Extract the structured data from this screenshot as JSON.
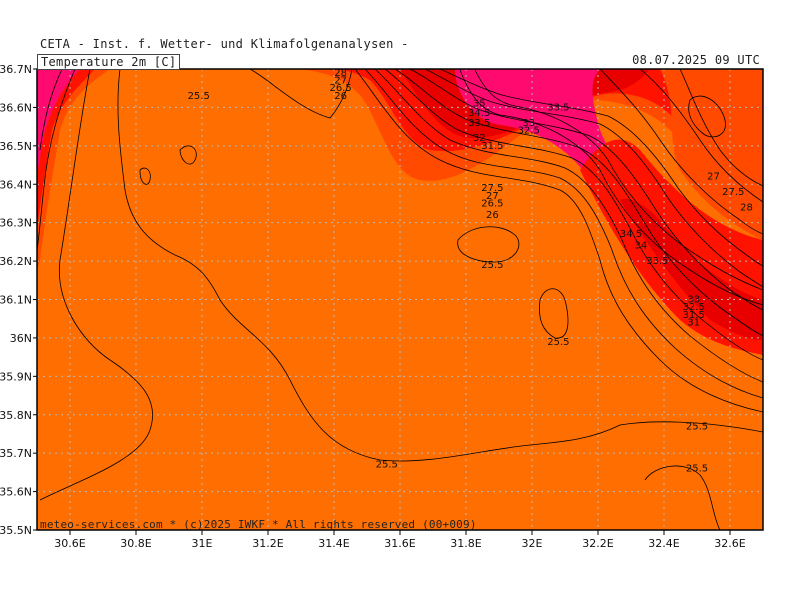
{
  "header": {
    "model_title": "CETA - Inst. f. Wetter- und Klimafolgenanalysen -",
    "valid_time": "08.07.2025 09 UTC",
    "variable": "Temperature 2m [C]"
  },
  "footer": {
    "credit": "meteo-services.com * (c)2025 IWKF * All rights reserved (00+009)"
  },
  "colors": {
    "base_orange": "#ff6e00",
    "orange_red": "#ff4a00",
    "red": "#ff1200",
    "deep_red": "#e80000",
    "magenta": "#ff0a6e",
    "grid": "#bbbbbb",
    "contour": "#000000"
  },
  "axes": {
    "lon_ticks": [
      "30.6E",
      "30.8E",
      "31E",
      "31.2E",
      "31.4E",
      "31.6E",
      "31.8E",
      "32E",
      "32.2E",
      "32.4E",
      "32.6E"
    ],
    "lat_ticks": [
      "36.7N",
      "36.6N",
      "36.5N",
      "36.4N",
      "36.3N",
      "36.2N",
      "36.1N",
      "36N",
      "35.9N",
      "35.8N",
      "35.7N",
      "35.6N",
      "35.5N"
    ]
  },
  "contour_labels": [
    {
      "text": "25.5",
      "lon": 30.99,
      "lat": 36.63
    },
    {
      "text": "28",
      "lon": 31.42,
      "lat": 36.69
    },
    {
      "text": "27",
      "lon": 31.42,
      "lat": 36.67
    },
    {
      "text": "26.5",
      "lon": 31.42,
      "lat": 36.65
    },
    {
      "text": "26",
      "lon": 31.42,
      "lat": 36.63
    },
    {
      "text": "35",
      "lon": 31.84,
      "lat": 36.61
    },
    {
      "text": "34.5",
      "lon": 31.84,
      "lat": 36.585
    },
    {
      "text": "33.5",
      "lon": 31.84,
      "lat": 36.56
    },
    {
      "text": "33",
      "lon": 31.99,
      "lat": 36.56
    },
    {
      "text": "32.5",
      "lon": 31.99,
      "lat": 36.54
    },
    {
      "text": "33.5",
      "lon": 32.08,
      "lat": 36.6
    },
    {
      "text": "32",
      "lon": 31.84,
      "lat": 36.52
    },
    {
      "text": "31.5",
      "lon": 31.88,
      "lat": 36.5
    },
    {
      "text": "27.5",
      "lon": 31.88,
      "lat": 36.39
    },
    {
      "text": "27",
      "lon": 31.88,
      "lat": 36.37
    },
    {
      "text": "26.5",
      "lon": 31.88,
      "lat": 36.35
    },
    {
      "text": "26",
      "lon": 31.88,
      "lat": 36.32
    },
    {
      "text": "25.5",
      "lon": 31.88,
      "lat": 36.19
    },
    {
      "text": "25.5",
      "lon": 32.08,
      "lat": 35.99
    },
    {
      "text": "34.5",
      "lon": 32.3,
      "lat": 36.27
    },
    {
      "text": "34",
      "lon": 32.33,
      "lat": 36.24
    },
    {
      "text": "33.5",
      "lon": 32.38,
      "lat": 36.2
    },
    {
      "text": "27",
      "lon": 32.55,
      "lat": 36.42
    },
    {
      "text": "27.5",
      "lon": 32.61,
      "lat": 36.38
    },
    {
      "text": "28",
      "lon": 32.65,
      "lat": 36.34
    },
    {
      "text": "33",
      "lon": 32.49,
      "lat": 36.1
    },
    {
      "text": "32.5",
      "lon": 32.49,
      "lat": 36.08
    },
    {
      "text": "31.5",
      "lon": 32.49,
      "lat": 36.06
    },
    {
      "text": "31",
      "lon": 32.49,
      "lat": 36.04
    },
    {
      "text": "25.5",
      "lon": 32.5,
      "lat": 35.77
    },
    {
      "text": "25.5",
      "lon": 32.5,
      "lat": 35.66
    },
    {
      "text": "25.5",
      "lon": 31.56,
      "lat": 35.67
    }
  ]
}
